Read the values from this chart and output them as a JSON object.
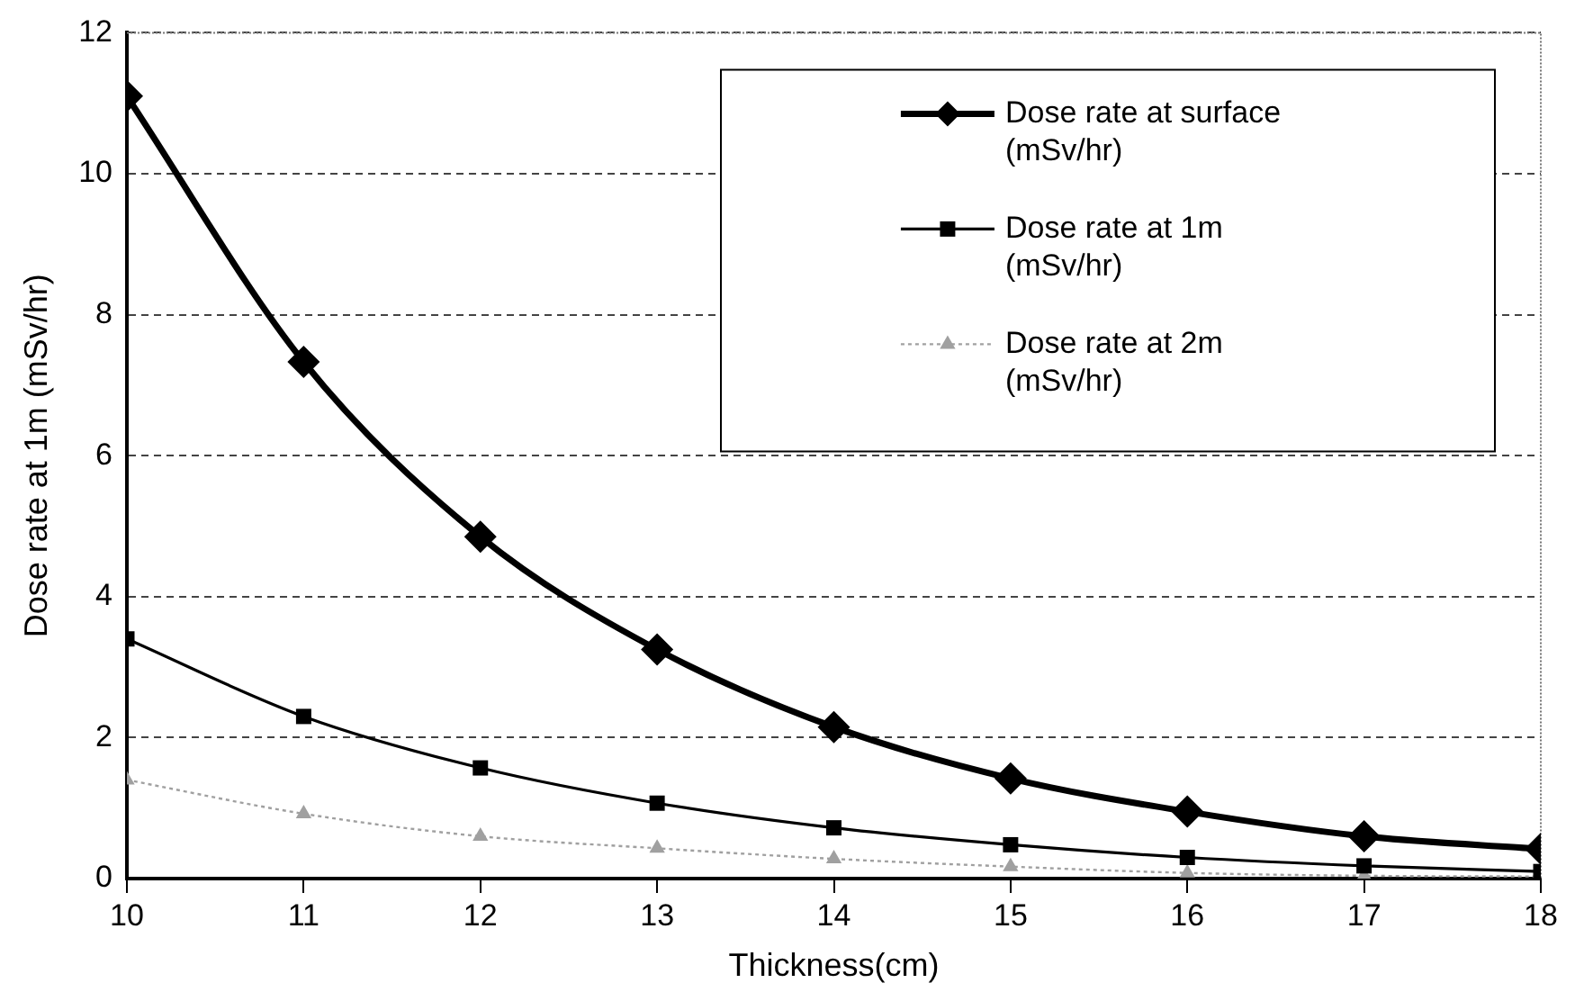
{
  "chart_data": {
    "type": "line",
    "xlabel": "Thickness(cm)",
    "ylabel": "Dose rate at 1m (mSv/hr)",
    "x": [
      10,
      11,
      12,
      13,
      14,
      15,
      16,
      17,
      18
    ],
    "xlim": [
      10,
      18
    ],
    "xticks": [
      10,
      11,
      12,
      13,
      14,
      15,
      16,
      17,
      18
    ],
    "ylim": [
      0,
      12
    ],
    "yticks": [
      0,
      2,
      4,
      6,
      8,
      10,
      12
    ],
    "grid": "y",
    "legend": "top right",
    "series": [
      {
        "name": "Dose rate at surface (mSv/hr)",
        "color": "#000000",
        "marker": "diamond",
        "line_style": "solid",
        "values": [
          11.1,
          7.33,
          4.85,
          3.25,
          2.15,
          1.42,
          0.95,
          0.6,
          0.42
        ]
      },
      {
        "name": "Dose rate at 1m (mSv/hr)",
        "color": "#000000",
        "marker": "square",
        "line_style": "solid",
        "values": [
          3.4,
          2.3,
          1.57,
          1.07,
          0.72,
          0.48,
          0.3,
          0.18,
          0.1
        ]
      },
      {
        "name": "Dose rate at 2m (mSv/hr)",
        "color": "#a0a0a0",
        "marker": "triangle",
        "line_style": "dotted",
        "values": [
          1.4,
          0.92,
          0.6,
          0.43,
          0.28,
          0.17,
          0.08,
          0.04,
          0.03
        ]
      }
    ]
  }
}
